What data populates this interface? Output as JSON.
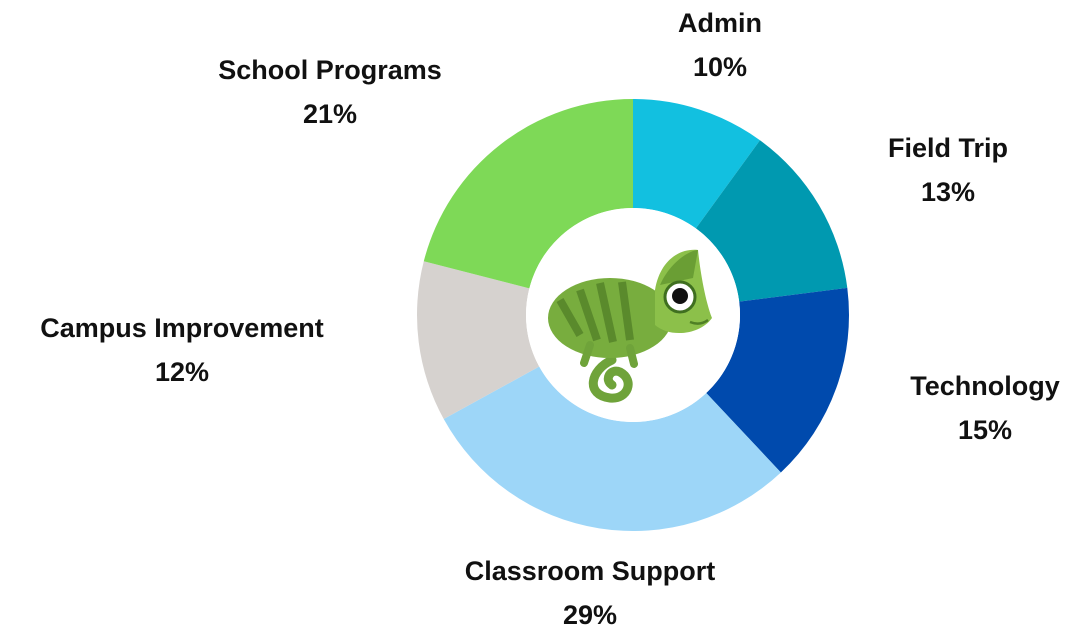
{
  "chart_data": {
    "type": "donut",
    "categories": [
      "Admin",
      "Field Trip",
      "Technology",
      "Classroom Support",
      "Campus Improvement",
      "School Programs"
    ],
    "values": [
      10,
      13,
      15,
      29,
      12,
      21
    ],
    "value_labels": [
      "10%",
      "13%",
      "15%",
      "29%",
      "12%",
      "21%"
    ],
    "colors": [
      "#12c0e0",
      "#0099b0",
      "#004aad",
      "#9dd6f8",
      "#d6d2cf",
      "#7ed957"
    ]
  }
}
